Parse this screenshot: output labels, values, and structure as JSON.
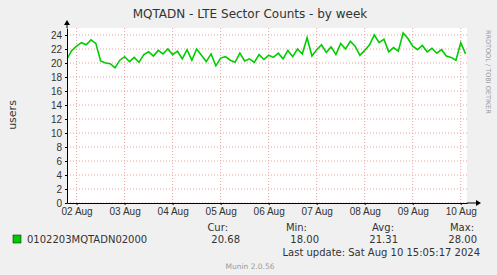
{
  "chart_data": {
    "type": "line",
    "title": "MQTADN - LTE Sector Counts - by week",
    "y_label": "users",
    "x": [
      2.3,
      2.4,
      2.5,
      2.6,
      2.7,
      2.8,
      2.9,
      3.0,
      3.1,
      3.2,
      3.3,
      3.4,
      3.5,
      3.6,
      3.7,
      3.8,
      3.9,
      4.0,
      4.1,
      4.2,
      4.3,
      4.4,
      4.5,
      4.6,
      4.7,
      4.8,
      4.9,
      5.0,
      5.1,
      5.2,
      5.3,
      5.4,
      5.5,
      5.6,
      5.7,
      5.8,
      5.9,
      6.0,
      6.1,
      6.2,
      6.3,
      6.4,
      6.5,
      6.6,
      6.7,
      6.8,
      6.9,
      7.0,
      7.1,
      7.2,
      7.3,
      7.4,
      7.5,
      7.6,
      7.7,
      7.8,
      7.9,
      8.0,
      8.1,
      8.2,
      8.3,
      8.4,
      8.5,
      8.6,
      8.7,
      8.8,
      8.9,
      9.0,
      9.1,
      9.2,
      9.3,
      9.4,
      9.5,
      9.6,
      9.7,
      9.8,
      9.9,
      10.0,
      10.1,
      10.2,
      10.3,
      10.4,
      10.5,
      10.6
    ],
    "series": [
      {
        "name": "0102203MQTADN02000",
        "color": "#00cc00",
        "values": [
          20.6,
          21.8,
          22.4,
          22.9,
          22.6,
          23.3,
          22.8,
          20.3,
          20.0,
          19.9,
          19.3,
          20.4,
          20.9,
          20.2,
          20.8,
          20.1,
          21.2,
          21.6,
          21.0,
          21.8,
          21.3,
          22.0,
          21.2,
          21.7,
          20.6,
          21.9,
          20.4,
          22.0,
          21.1,
          20.2,
          21.3,
          19.6,
          20.7,
          20.9,
          20.4,
          20.1,
          21.4,
          20.3,
          20.6,
          20.1,
          21.2,
          20.5,
          21.1,
          20.8,
          21.4,
          20.6,
          21.8,
          20.9,
          22.0,
          21.3,
          23.6,
          21.0,
          21.9,
          22.6,
          21.5,
          22.3,
          21.2,
          22.8,
          22.0,
          23.1,
          22.4,
          21.1,
          21.8,
          22.6,
          24.0,
          22.9,
          23.4,
          21.6,
          22.2,
          21.7,
          24.3,
          23.5,
          22.4,
          21.9,
          22.5,
          21.6,
          22.1,
          21.4,
          21.9,
          21.0,
          20.8,
          20.4,
          22.9,
          21.3
        ],
        "summary": {
          "labels": [
            "Cur:",
            "Min:",
            "Avg:",
            "Max:"
          ],
          "values": [
            20.68,
            18.0,
            21.31,
            28.0
          ],
          "value_labels": [
            "20.68",
            "18.00",
            "21.31",
            "28.00"
          ]
        }
      }
    ],
    "xlim": [
      2.3,
      10.63
    ],
    "ylim": [
      0,
      25
    ],
    "xticks": [
      {
        "value": 2.5,
        "label": "02 Aug"
      },
      {
        "value": 3.5,
        "label": "03 Aug"
      },
      {
        "value": 4.5,
        "label": "04 Aug"
      },
      {
        "value": 5.5,
        "label": "05 Aug"
      },
      {
        "value": 6.5,
        "label": "06 Aug"
      },
      {
        "value": 7.5,
        "label": "07 Aug"
      },
      {
        "value": 8.5,
        "label": "08 Aug"
      },
      {
        "value": 9.5,
        "label": "09 Aug"
      },
      {
        "value": 10.5,
        "label": "10 Aug"
      }
    ],
    "yticks": [
      0,
      2,
      4,
      6,
      8,
      10,
      12,
      14,
      16,
      18,
      20,
      22,
      24
    ],
    "grid": true,
    "legend": "bottom",
    "annotations": [
      "Last update: Sat Aug 10 15:05:17 2024",
      "Munin 2.0.56",
      "RRDTOOL / TOBI OETIKER"
    ]
  }
}
